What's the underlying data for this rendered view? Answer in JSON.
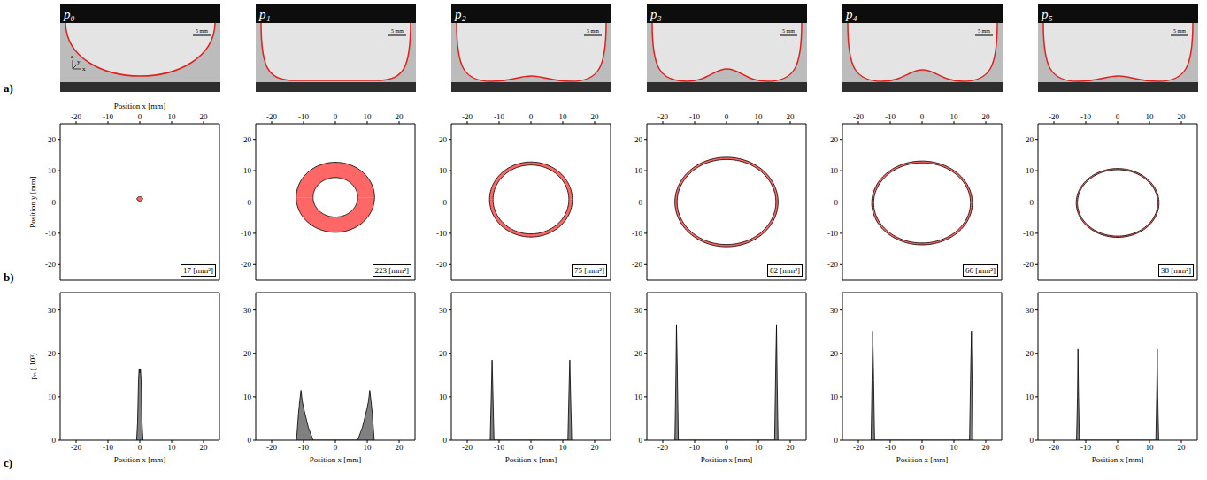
{
  "row_labels": [
    "a)",
    "b)",
    "c)"
  ],
  "panels": [
    "p₀",
    "p₁",
    "p₂",
    "p₃",
    "p₄",
    "p₅"
  ],
  "scale_bar": "5 mm",
  "axis_icon": [
    "x",
    "y",
    "z"
  ],
  "chart_data": [
    {
      "type": "ellipse",
      "x_label": "Position x [mm]",
      "y_label": "Position y [mm]",
      "xlim": [
        -25,
        25
      ],
      "xticks": [
        -20,
        -10,
        0,
        10,
        20
      ],
      "ylim": [
        -25,
        25
      ],
      "yticks": [
        -20,
        -10,
        0,
        10,
        20
      ],
      "color": "#ff6666",
      "center": [
        0,
        1
      ],
      "outer": [
        0.9,
        0.7
      ],
      "inner": null,
      "area": 17,
      "area_unit": "[mm²]"
    },
    {
      "type": "ellipse",
      "xlim": [
        -25,
        25
      ],
      "xticks": [
        -20,
        -10,
        0,
        10,
        20
      ],
      "ylim": [
        -25,
        25
      ],
      "yticks": [
        -20,
        -10,
        0,
        10,
        20
      ],
      "color": "#ff6666",
      "center": [
        0,
        1.5
      ],
      "outer": [
        12.3,
        11.2
      ],
      "inner": [
        7.0,
        6.3
      ],
      "area": 223,
      "area_unit": "[mm²]"
    },
    {
      "type": "ellipse",
      "xlim": [
        -25,
        25
      ],
      "xticks": [
        -20,
        -10,
        0,
        10,
        20
      ],
      "ylim": [
        -25,
        25
      ],
      "yticks": [
        -20,
        -10,
        0,
        10,
        20
      ],
      "color": "#ff6666",
      "center": [
        0,
        0.8
      ],
      "outer": [
        13.0,
        12.0
      ],
      "inner": [
        11.9,
        11.0
      ],
      "area": 75,
      "area_unit": "[mm²]"
    },
    {
      "type": "ellipse",
      "xlim": [
        -25,
        25
      ],
      "xticks": [
        -20,
        -10,
        0,
        10,
        20
      ],
      "ylim": [
        -25,
        25
      ],
      "yticks": [
        -20,
        -10,
        0,
        10,
        20
      ],
      "color": "#ff6666",
      "center": [
        0,
        0
      ],
      "outer": [
        16.2,
        14.3
      ],
      "inner": [
        15.5,
        13.6
      ],
      "area": 82,
      "area_unit": "[mm²]"
    },
    {
      "type": "ellipse",
      "xlim": [
        -25,
        25
      ],
      "xticks": [
        -20,
        -10,
        0,
        10,
        20
      ],
      "ylim": [
        -25,
        25
      ],
      "yticks": [
        -20,
        -10,
        0,
        10,
        20
      ],
      "color": "#ff6666",
      "center": [
        0,
        -0.3
      ],
      "outer": [
        15.8,
        13.4
      ],
      "inner": [
        15.2,
        12.8
      ],
      "area": 66,
      "area_unit": "[mm²]"
    },
    {
      "type": "ellipse",
      "xlim": [
        -25,
        25
      ],
      "xticks": [
        -20,
        -10,
        0,
        10,
        20
      ],
      "ylim": [
        -25,
        25
      ],
      "yticks": [
        -20,
        -10,
        0,
        10,
        20
      ],
      "color": "#ff6666",
      "center": [
        0,
        -0.3
      ],
      "outer": [
        13.0,
        11.0
      ],
      "inner": [
        12.6,
        10.6
      ],
      "area": 38,
      "area_unit": "[mm²]"
    },
    {
      "type": "area",
      "x_label": "Position x [mm]",
      "y_label": "pₙ (.10³)",
      "xlim": [
        -25,
        25
      ],
      "xticks": [
        -20,
        -10,
        0,
        10,
        20
      ],
      "ylim": [
        0,
        34
      ],
      "yticks": [
        0,
        10,
        20,
        30
      ],
      "color": "#808080",
      "x": [
        -1.0,
        -0.7,
        -0.4,
        -0.2,
        0,
        0.2,
        0.4,
        0.7,
        1.0
      ],
      "values": [
        0,
        4,
        14,
        16.5,
        15.5,
        16.5,
        14,
        4,
        0
      ]
    },
    {
      "type": "area",
      "x_label": "Position x [mm]",
      "xlim": [
        -25,
        25
      ],
      "xticks": [
        -20,
        -10,
        0,
        10,
        20
      ],
      "ylim": [
        0,
        34
      ],
      "yticks": [
        0,
        10,
        20,
        30
      ],
      "color": "#808080",
      "x": [
        -12.2,
        -11.6,
        -11.2,
        -10.8,
        -10.4,
        -10.0,
        -9.5,
        -9.0,
        -8.5,
        -8.0,
        -7.5,
        -7.0,
        7.0,
        7.5,
        8.0,
        8.5,
        9.0,
        9.5,
        10.0,
        10.4,
        10.8,
        11.2,
        11.6,
        12.2
      ],
      "values": [
        0,
        6,
        9,
        11.5,
        9,
        7.5,
        6,
        4.5,
        3,
        2,
        1,
        0,
        0,
        1,
        2,
        3,
        4.5,
        6,
        7.5,
        9,
        11.5,
        9,
        6,
        0
      ]
    },
    {
      "type": "area",
      "x_label": "Position x [mm]",
      "xlim": [
        -25,
        25
      ],
      "xticks": [
        -20,
        -10,
        0,
        10,
        20
      ],
      "ylim": [
        0,
        34
      ],
      "yticks": [
        0,
        10,
        20,
        30
      ],
      "color": "#808080",
      "x": [
        -12.8,
        -12.4,
        -12.2,
        -12.0,
        -11.6,
        11.6,
        12.0,
        12.2,
        12.4,
        12.8
      ],
      "values": [
        0,
        12,
        18.5,
        13,
        0,
        0,
        13,
        18.5,
        12,
        0
      ]
    },
    {
      "type": "area",
      "x_label": "Position x [mm]",
      "xlim": [
        -25,
        25
      ],
      "xticks": [
        -20,
        -10,
        0,
        10,
        20
      ],
      "ylim": [
        0,
        34
      ],
      "yticks": [
        0,
        10,
        20,
        30
      ],
      "color": "#808080",
      "x": [
        -16.2,
        -15.9,
        -15.7,
        -15.5,
        -15.1,
        15.1,
        15.5,
        15.7,
        15.9,
        16.2
      ],
      "values": [
        0,
        14,
        26.5,
        19,
        0,
        0,
        19,
        26.5,
        14,
        0
      ]
    },
    {
      "type": "area",
      "x_label": "Position x [mm]",
      "xlim": [
        -25,
        25
      ],
      "xticks": [
        -20,
        -10,
        0,
        10,
        20
      ],
      "ylim": [
        0,
        34
      ],
      "yticks": [
        0,
        10,
        20,
        30
      ],
      "color": "#808080",
      "x": [
        -16.0,
        -15.7,
        -15.5,
        -15.3,
        -14.9,
        14.9,
        15.3,
        15.5,
        15.7,
        16.0
      ],
      "values": [
        0,
        14,
        25,
        18,
        0,
        0,
        18,
        25,
        14,
        0
      ]
    },
    {
      "type": "area",
      "x_label": "Position x [mm]",
      "xlim": [
        -25,
        25
      ],
      "xticks": [
        -20,
        -10,
        0,
        10,
        20
      ],
      "ylim": [
        0,
        34
      ],
      "yticks": [
        0,
        10,
        20,
        30
      ],
      "color": "#808080",
      "x": [
        -12.9,
        -12.6,
        -12.45,
        -12.3,
        -12.0,
        12.0,
        12.3,
        12.45,
        12.6,
        12.9
      ],
      "values": [
        0,
        10,
        21,
        12,
        0,
        0,
        12,
        21,
        10,
        0
      ]
    }
  ]
}
